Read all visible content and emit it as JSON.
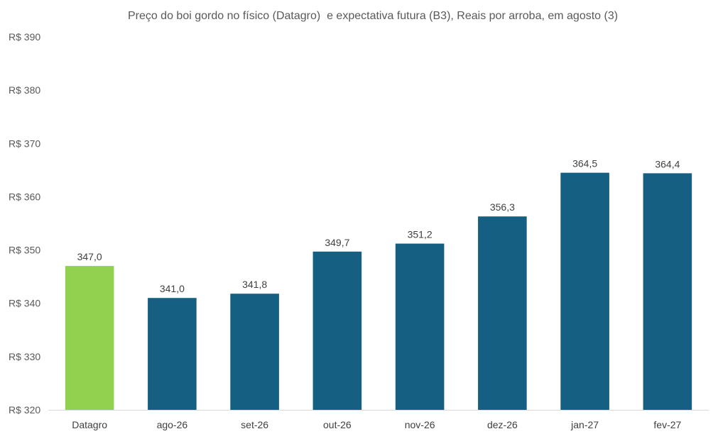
{
  "chart_data": {
    "type": "bar",
    "title": "Preço do boi gordo no físico (Datagro)  e expectativa futura (B3), Reais por arroba, em agosto (3)",
    "categories": [
      "Datagro",
      "ago-26",
      "set-26",
      "out-26",
      "nov-26",
      "dez-26",
      "jan-27",
      "fev-27"
    ],
    "values": [
      347.0,
      341.0,
      341.8,
      349.7,
      351.2,
      356.3,
      364.5,
      364.4
    ],
    "data_labels": [
      "347,0",
      "341,0",
      "341,8",
      "349,7",
      "351,2",
      "356,3",
      "364,5",
      "364,4"
    ],
    "ylim": [
      320,
      390
    ],
    "yticks": [
      320,
      330,
      340,
      350,
      360,
      370,
      380,
      390
    ],
    "ytick_labels": [
      "R$ 320",
      "R$ 330",
      "R$ 340",
      "R$ 350",
      "R$ 360",
      "R$ 370",
      "R$ 380",
      "R$ 390"
    ],
    "xlabel": "",
    "ylabel": "",
    "grid": false,
    "legend": "none",
    "colors": {
      "highlight": "#92d050",
      "bar": "#156082",
      "axis": "#d9d9d9"
    }
  }
}
